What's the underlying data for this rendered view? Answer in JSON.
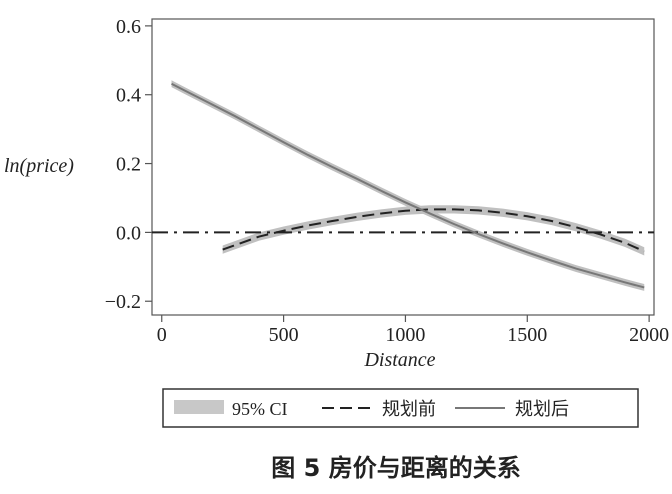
{
  "chart_data": {
    "type": "line",
    "caption": "图 5   房价与距离的关系",
    "xlabel": "Distance",
    "ylabel": "ln(price)",
    "xlim": [
      -40,
      2020
    ],
    "ylim": [
      -0.24,
      0.62
    ],
    "x_ticks": [
      0,
      500,
      1000,
      1500,
      2000
    ],
    "y_ticks": [
      -0.2,
      0.0,
      0.2,
      0.4,
      0.6
    ],
    "x_tick_labels": [
      "0",
      "500",
      "1000",
      "1500",
      "2000"
    ],
    "y_tick_labels": [
      "−0.2",
      "0.0",
      "0.2",
      "0.4",
      "0.6"
    ],
    "grid": false,
    "legend_position": "bottom",
    "legend": [
      {
        "label": "95%  CI",
        "style": "band",
        "color": "#c8c8c8"
      },
      {
        "label": "规划前",
        "style": "dashed",
        "color": "#222222"
      },
      {
        "label": "规划后",
        "style": "solid",
        "color": "#777777"
      }
    ],
    "reference_line": {
      "y": 0.0,
      "style": "dashdot",
      "color": "#222222"
    },
    "series": [
      {
        "name": "规划前",
        "style": "dashed",
        "color": "#222222",
        "ci_color": "#c0c0c0",
        "ci_halfwidth": 0.012,
        "x": [
          250,
          400,
          500,
          600,
          700,
          800,
          900,
          1000,
          1100,
          1200,
          1300,
          1400,
          1500,
          1600,
          1700,
          1800,
          1900,
          1980
        ],
        "y": [
          -0.05,
          -0.012,
          0.005,
          0.02,
          0.033,
          0.045,
          0.055,
          0.063,
          0.067,
          0.067,
          0.064,
          0.057,
          0.047,
          0.033,
          0.015,
          -0.006,
          -0.03,
          -0.055
        ]
      },
      {
        "name": "规划后",
        "style": "solid",
        "color": "#777777",
        "ci_color": "#c0c0c0",
        "ci_halfwidth": 0.01,
        "x": [
          40,
          100,
          200,
          300,
          400,
          500,
          600,
          700,
          800,
          900,
          1000,
          1100,
          1200,
          1300,
          1400,
          1500,
          1600,
          1700,
          1800,
          1900,
          1980
        ],
        "y": [
          0.432,
          0.41,
          0.374,
          0.338,
          0.3,
          0.262,
          0.225,
          0.19,
          0.156,
          0.121,
          0.087,
          0.055,
          0.024,
          -0.005,
          -0.032,
          -0.058,
          -0.082,
          -0.105,
          -0.125,
          -0.145,
          -0.16
        ]
      }
    ]
  }
}
